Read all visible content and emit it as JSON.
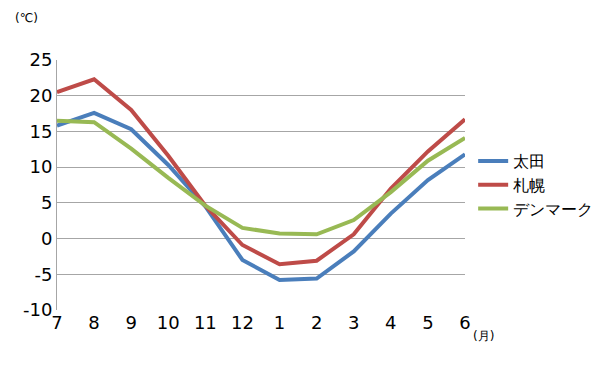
{
  "chart_data": {
    "type": "line",
    "xlabel": "(月)",
    "ylabel": "(℃)",
    "categories": [
      "7",
      "8",
      "9",
      "10",
      "11",
      "12",
      "1",
      "2",
      "3",
      "4",
      "5",
      "6"
    ],
    "series": [
      {
        "name": "太田",
        "color": "#4a7ebb",
        "values": [
          15.8,
          17.6,
          15.3,
          10.3,
          4.5,
          -3.0,
          -5.8,
          -5.6,
          -1.8,
          3.5,
          8.2,
          11.8
        ]
      },
      {
        "name": "札幌",
        "color": "#be4b48",
        "values": [
          20.5,
          22.3,
          18.0,
          11.6,
          4.6,
          -0.9,
          -3.6,
          -3.1,
          0.6,
          7.0,
          12.2,
          16.7
        ]
      },
      {
        "name": "デンマーク",
        "color": "#98b954",
        "values": [
          16.5,
          16.3,
          12.6,
          8.5,
          4.6,
          1.5,
          0.7,
          0.6,
          2.6,
          6.5,
          10.9,
          14.1
        ]
      }
    ],
    "ylim": [
      -10,
      25
    ],
    "yticks": [
      -10,
      -5,
      0,
      5,
      10,
      15,
      20,
      25
    ],
    "grid": true,
    "legend": "right"
  }
}
